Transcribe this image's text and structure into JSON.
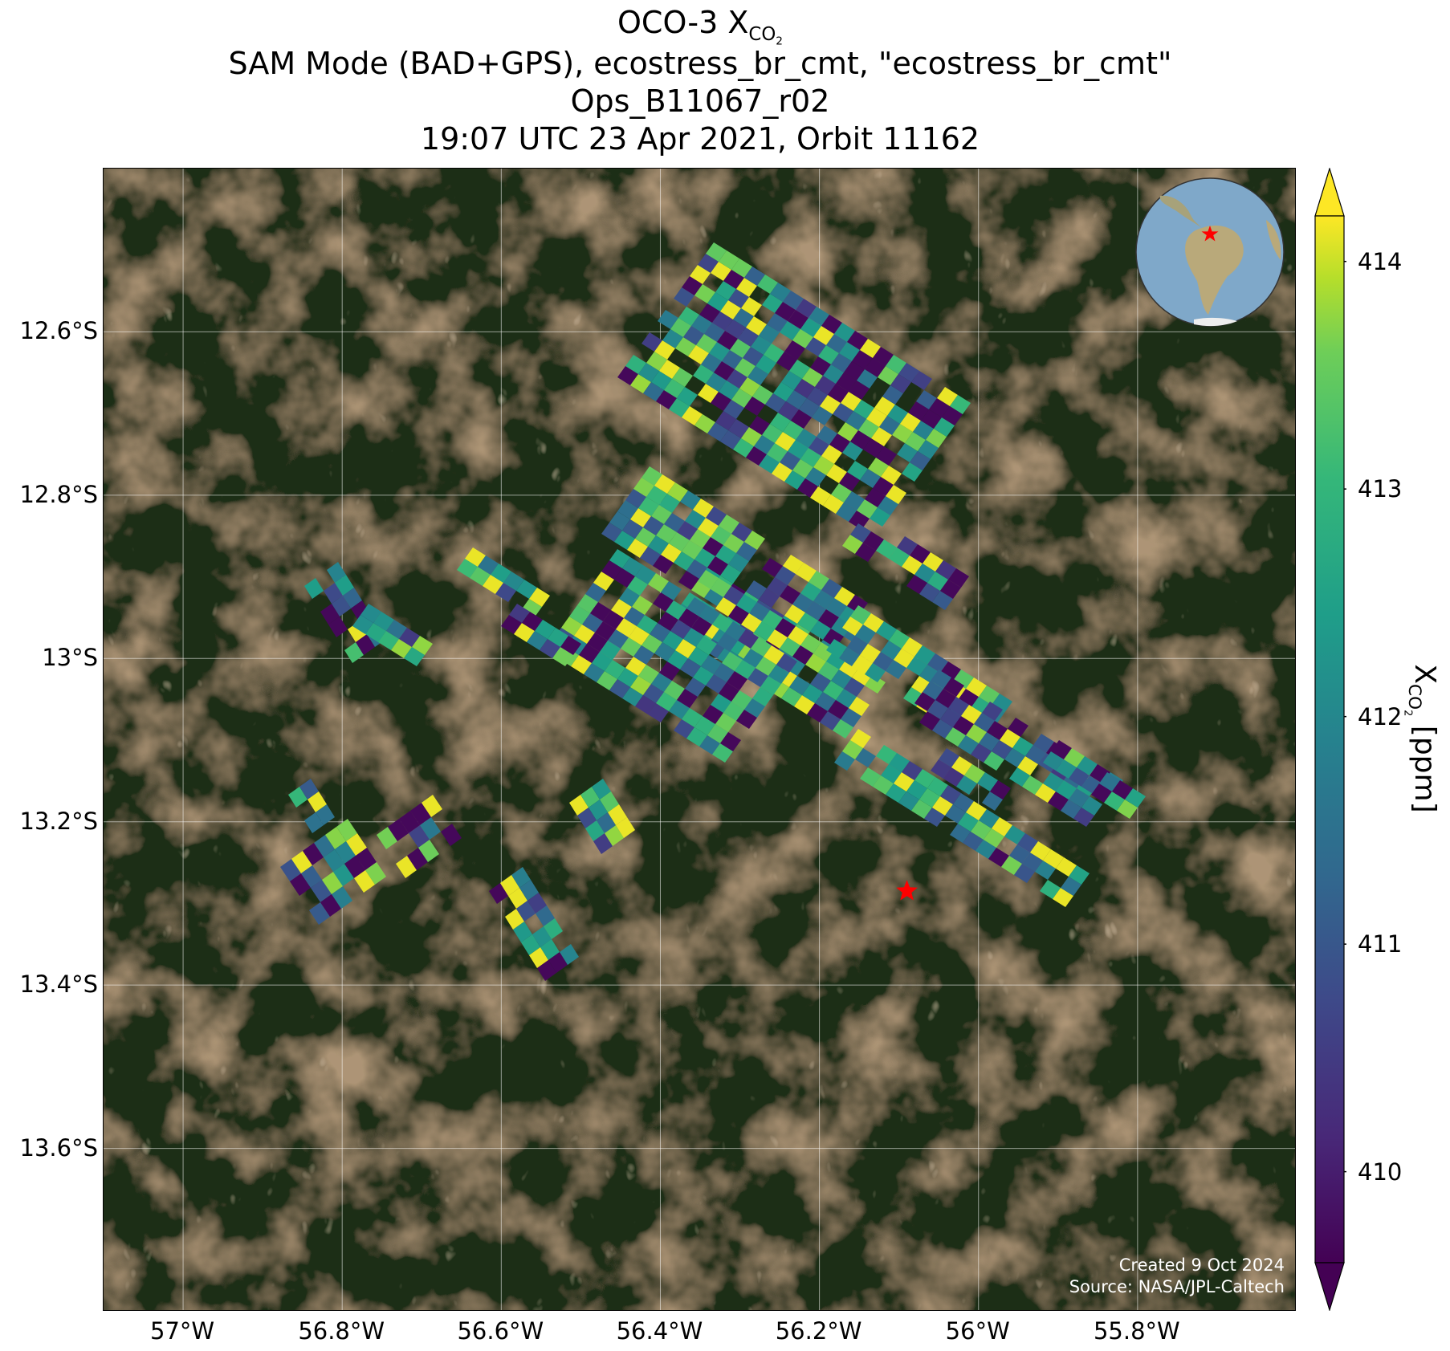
{
  "title_lines": [
    "OCO-3 X",
    "SAM Mode (BAD+GPS), ecostress_br_cmt, \"ecostress_br_cmt\"",
    "Ops_B11067_r02",
    "19:07 UTC 23 Apr 2021, Orbit 11162"
  ],
  "title_sub": "CO",
  "title_sub2": "2",
  "map": {
    "lat_labels": [
      "12.6°S",
      "12.8°S",
      "13°S",
      "13.2°S",
      "13.4°S",
      "13.6°S"
    ],
    "lon_labels": [
      "57°W",
      "56.8°W",
      "56.6°W",
      "56.4°W",
      "56.2°W",
      "56°W",
      "55.8°W"
    ],
    "lat_range": [
      -13.8,
      -12.4
    ],
    "lon_range": [
      -57.1,
      -55.6
    ],
    "credit_line1": "Created 9 Oct 2024",
    "credit_line2": "Source: NASA/JPL-Caltech",
    "target_marker": {
      "lon": -56.09,
      "lat": -13.285,
      "icon": "red-star-icon",
      "color": "#ff0000"
    }
  },
  "colorbar": {
    "ticks": [
      "414",
      "413",
      "412",
      "411",
      "410"
    ],
    "range": [
      409.6,
      414.2
    ],
    "colormap": "viridis",
    "label_main": "X",
    "label_sub": "CO",
    "label_sub2": "2",
    "label_unit": " [ppm]"
  }
}
